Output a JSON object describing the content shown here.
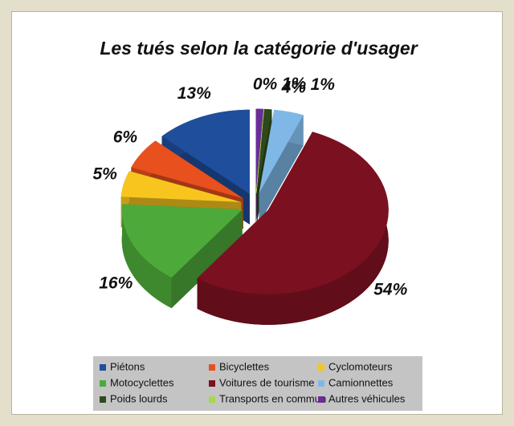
{
  "chart_data": {
    "type": "pie",
    "title": "Les tués selon la catégorie d'usager",
    "categories": [
      "Piétons",
      "Bicyclettes",
      "Cyclomoteurs",
      "Motocyclettes",
      "Voitures de tourisme",
      "Camionnettes",
      "Poids lourds",
      "Transports en commun",
      "Autres véhicules"
    ],
    "values": [
      13,
      6,
      5,
      16,
      54,
      4,
      1,
      0,
      1
    ],
    "value_labels": [
      "13%",
      "6%",
      "5%",
      "16%",
      "54%",
      "4%",
      "1%",
      "0%",
      "1%"
    ],
    "colors": [
      "#1f4e9c",
      "#e8501e",
      "#f7c51e",
      "#4daa3a",
      "#7a1020",
      "#7fb8e6",
      "#2e4a1a",
      "#a6d84a",
      "#6a2c9a"
    ],
    "legend": "bottom"
  }
}
